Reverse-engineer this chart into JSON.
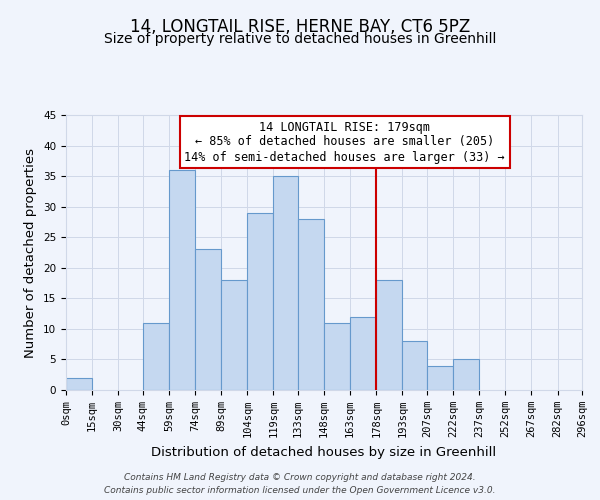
{
  "title": "14, LONGTAIL RISE, HERNE BAY, CT6 5PZ",
  "subtitle": "Size of property relative to detached houses in Greenhill",
  "xlabel": "Distribution of detached houses by size in Greenhill",
  "ylabel": "Number of detached properties",
  "bar_left_edges": [
    0,
    15,
    30,
    44,
    59,
    74,
    89,
    104,
    119,
    133,
    148,
    163,
    178,
    193,
    207,
    222,
    237,
    252,
    267,
    282
  ],
  "bar_widths": [
    15,
    15,
    14,
    15,
    15,
    15,
    15,
    15,
    14,
    15,
    15,
    15,
    15,
    14,
    15,
    15,
    15,
    15,
    15,
    14
  ],
  "bar_heights": [
    2,
    0,
    0,
    11,
    36,
    23,
    18,
    29,
    35,
    28,
    11,
    12,
    18,
    8,
    4,
    5,
    0,
    0,
    0,
    0
  ],
  "bar_color": "#c5d8f0",
  "bar_edge_color": "#6699cc",
  "x_tick_labels": [
    "0sqm",
    "15sqm",
    "30sqm",
    "44sqm",
    "59sqm",
    "74sqm",
    "89sqm",
    "104sqm",
    "119sqm",
    "133sqm",
    "148sqm",
    "163sqm",
    "178sqm",
    "193sqm",
    "207sqm",
    "222sqm",
    "237sqm",
    "252sqm",
    "267sqm",
    "282sqm",
    "296sqm"
  ],
  "x_tick_positions": [
    0,
    15,
    30,
    44,
    59,
    74,
    89,
    104,
    119,
    133,
    148,
    163,
    178,
    193,
    207,
    222,
    237,
    252,
    267,
    282,
    296
  ],
  "ylim": [
    0,
    45
  ],
  "xlim": [
    0,
    296
  ],
  "vline_x": 178,
  "vline_color": "#cc0000",
  "annotation_title": "14 LONGTAIL RISE: 179sqm",
  "annotation_line1": "← 85% of detached houses are smaller (205)",
  "annotation_line2": "14% of semi-detached houses are larger (33) →",
  "annotation_box_color": "#cc0000",
  "grid_color": "#d0d8e8",
  "bg_color": "#f0f4fc",
  "footer_line1": "Contains HM Land Registry data © Crown copyright and database right 2024.",
  "footer_line2": "Contains public sector information licensed under the Open Government Licence v3.0.",
  "title_fontsize": 12,
  "subtitle_fontsize": 10,
  "axis_label_fontsize": 9.5,
  "tick_fontsize": 7.5,
  "annotation_fontsize": 8.5
}
